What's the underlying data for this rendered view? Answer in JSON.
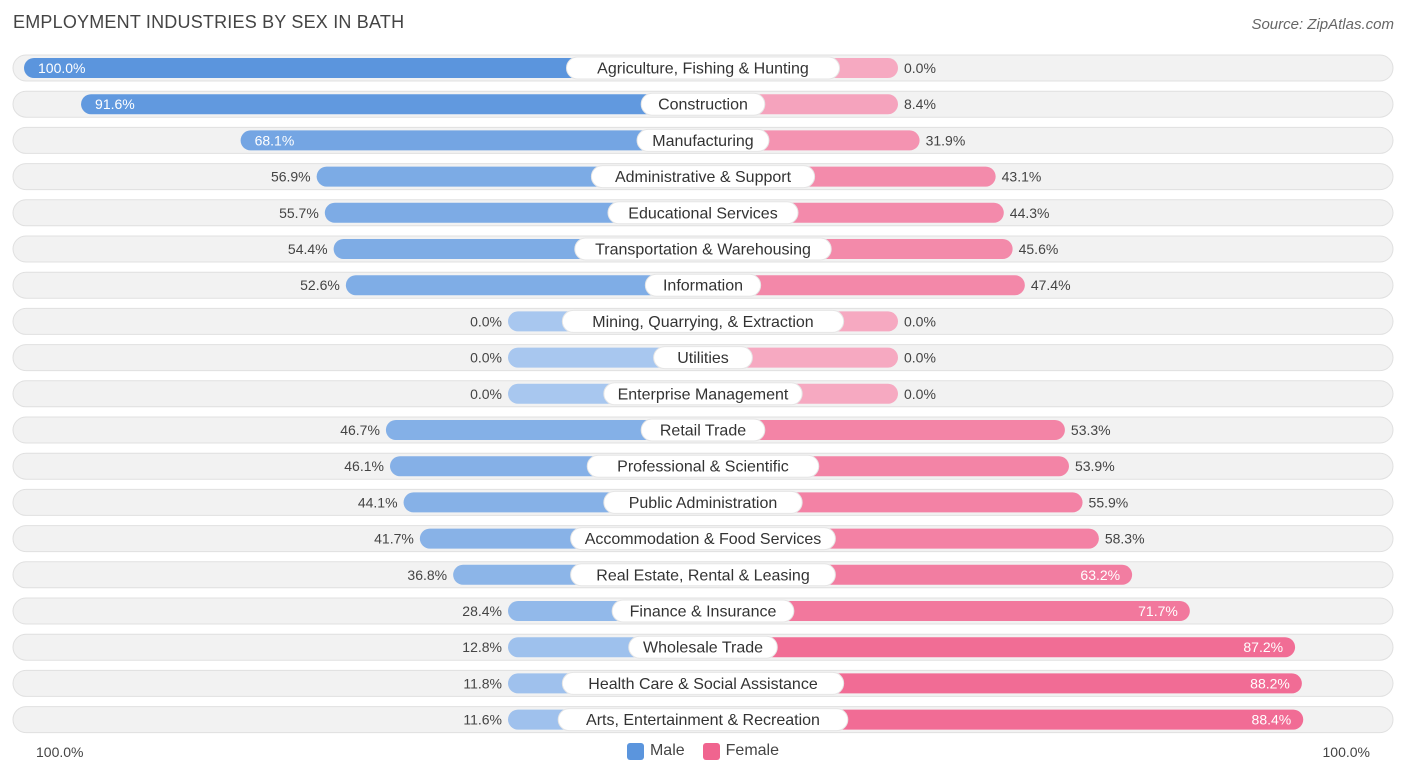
{
  "title": "EMPLOYMENT INDUSTRIES BY SEX IN BATH",
  "source": "Source: ZipAtlas.com",
  "axis": {
    "left_label": "100.0%",
    "right_label": "100.0%"
  },
  "legend": {
    "male": "Male",
    "female": "Female"
  },
  "colors": {
    "male_strong": "#5b95dd",
    "male_light": "#a8c7ef",
    "female_strong": "#f0648f",
    "female_light": "#f6a9c1",
    "row_bg": "#f2f2f2",
    "row_border": "#e0e0e0"
  },
  "chart_data": {
    "type": "bar",
    "orientation": "diverging-horizontal",
    "title": "EMPLOYMENT INDUSTRIES BY SEX IN BATH",
    "xlim": [
      -100,
      100
    ],
    "categories": [
      "Agriculture, Fishing & Hunting",
      "Construction",
      "Manufacturing",
      "Administrative & Support",
      "Educational Services",
      "Transportation & Warehousing",
      "Information",
      "Mining, Quarrying, & Extraction",
      "Utilities",
      "Enterprise Management",
      "Retail Trade",
      "Professional & Scientific",
      "Public Administration",
      "Accommodation & Food Services",
      "Real Estate, Rental & Leasing",
      "Finance & Insurance",
      "Wholesale Trade",
      "Health Care & Social Assistance",
      "Arts, Entertainment & Recreation"
    ],
    "series": [
      {
        "name": "Male",
        "values": [
          100.0,
          91.6,
          68.1,
          56.9,
          55.7,
          54.4,
          52.6,
          0.0,
          0.0,
          0.0,
          46.7,
          46.1,
          44.1,
          41.7,
          36.8,
          28.4,
          12.8,
          11.8,
          11.6
        ],
        "labels": [
          "100.0%",
          "91.6%",
          "68.1%",
          "56.9%",
          "55.7%",
          "54.4%",
          "52.6%",
          "0.0%",
          "0.0%",
          "0.0%",
          "46.7%",
          "46.1%",
          "44.1%",
          "41.7%",
          "36.8%",
          "28.4%",
          "12.8%",
          "11.8%",
          "11.6%"
        ]
      },
      {
        "name": "Female",
        "values": [
          0.0,
          8.4,
          31.9,
          43.1,
          44.3,
          45.6,
          47.4,
          0.0,
          0.0,
          0.0,
          53.3,
          53.9,
          55.9,
          58.3,
          63.2,
          71.7,
          87.2,
          88.2,
          88.4
        ],
        "labels": [
          "0.0%",
          "8.4%",
          "31.9%",
          "43.1%",
          "44.3%",
          "45.6%",
          "47.4%",
          "0.0%",
          "0.0%",
          "0.0%",
          "53.3%",
          "53.9%",
          "55.9%",
          "58.3%",
          "63.2%",
          "71.7%",
          "87.2%",
          "88.2%",
          "88.4%"
        ]
      }
    ]
  }
}
